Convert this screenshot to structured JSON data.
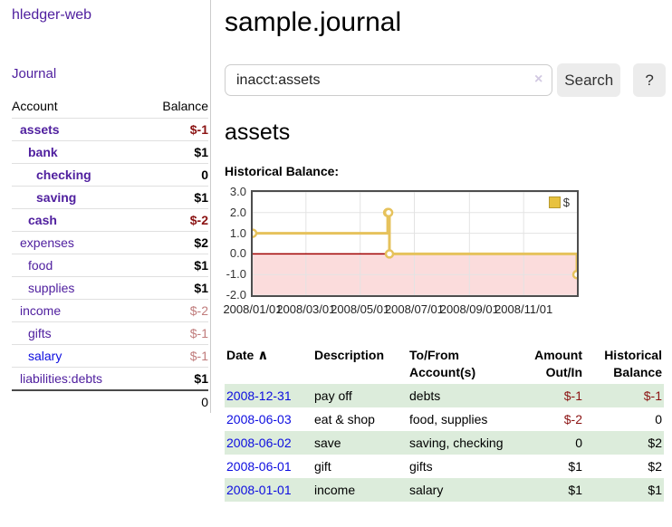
{
  "app_title": "hledger-web",
  "sidebar": {
    "journal_link": "Journal",
    "table": {
      "account_header": "Account",
      "balance_header": "Balance",
      "rows": [
        {
          "name": "assets",
          "level": 1,
          "bold": true,
          "name_style": "purple",
          "balance": "$-1",
          "balance_style": "negative-strong"
        },
        {
          "name": "bank",
          "level": 2,
          "bold": true,
          "name_style": "purple",
          "balance": "$1",
          "balance_style": "normal"
        },
        {
          "name": "checking",
          "level": 3,
          "bold": true,
          "name_style": "purple",
          "balance": "0",
          "balance_style": "normal"
        },
        {
          "name": "saving",
          "level": 3,
          "bold": true,
          "name_style": "purple",
          "balance": "$1",
          "balance_style": "normal"
        },
        {
          "name": "cash",
          "level": 2,
          "bold": true,
          "name_style": "purple",
          "balance": "$-2",
          "balance_style": "negative-strong"
        },
        {
          "name": "expenses",
          "level": 1,
          "bold": false,
          "name_style": "purple",
          "balance": "$2",
          "balance_style": "normal"
        },
        {
          "name": "food",
          "level": 2,
          "bold": false,
          "name_style": "purple",
          "balance": "$1",
          "balance_style": "normal"
        },
        {
          "name": "supplies",
          "level": 2,
          "bold": false,
          "name_style": "purple",
          "balance": "$1",
          "balance_style": "normal"
        },
        {
          "name": "income",
          "level": 1,
          "bold": false,
          "name_style": "purple",
          "balance": "$-2",
          "balance_style": "negative-faded"
        },
        {
          "name": "gifts",
          "level": 2,
          "bold": false,
          "name_style": "purple",
          "balance": "$-1",
          "balance_style": "negative-faded"
        },
        {
          "name": "salary",
          "level": 2,
          "bold": false,
          "name_style": "blue",
          "balance": "$-1",
          "balance_style": "negative-faded"
        },
        {
          "name": "liabilities:debts",
          "level": 1,
          "bold": false,
          "name_style": "purple",
          "balance": "$1",
          "balance_style": "normal"
        }
      ],
      "total": "0"
    }
  },
  "main": {
    "title": "sample.journal",
    "search": {
      "value": "inacct:assets",
      "clear_icon": "×",
      "search_button": "Search",
      "help_button": "?"
    },
    "account_heading": "assets",
    "chart_title": "Historical Balance:",
    "register": {
      "sort_indicator": "∧",
      "headers": [
        {
          "label": "Date",
          "align": "left",
          "sorted": true
        },
        {
          "label": "Description",
          "align": "left"
        },
        {
          "label": "To/From Account(s)",
          "align": "left"
        },
        {
          "label": "Amount Out/In",
          "align": "right"
        },
        {
          "label": "Historical Balance",
          "align": "right"
        }
      ],
      "rows": [
        {
          "date": "2008-12-31",
          "description": "pay off",
          "accounts": "debts",
          "amount": "$-1",
          "amount_negative": true,
          "balance": "$-1",
          "balance_negative": true
        },
        {
          "date": "2008-06-03",
          "description": "eat & shop",
          "accounts": "food, supplies",
          "amount": "$-2",
          "amount_negative": true,
          "balance": "0",
          "balance_negative": false
        },
        {
          "date": "2008-06-02",
          "description": "save",
          "accounts": "saving, checking",
          "amount": "0",
          "amount_negative": false,
          "balance": "$2",
          "balance_negative": false
        },
        {
          "date": "2008-06-01",
          "description": "gift",
          "accounts": "gifts",
          "amount": "$1",
          "amount_negative": false,
          "balance": "$2",
          "balance_negative": false
        },
        {
          "date": "2008-01-01",
          "description": "income",
          "accounts": "salary",
          "amount": "$1",
          "amount_negative": false,
          "balance": "$1",
          "balance_negative": false
        }
      ]
    }
  },
  "chart_data": {
    "type": "line",
    "title": "Historical Balance:",
    "step": true,
    "x_domain": [
      "2008-01-01",
      "2008-12-31"
    ],
    "ylim": [
      -2,
      3
    ],
    "y_ticks": [
      3.0,
      2.0,
      1.0,
      0.0,
      -1.0,
      -2.0
    ],
    "x_ticks": [
      "2008/01/01",
      "2008/03/01",
      "2008/05/01",
      "2008/07/01",
      "2008/09/01",
      "2008/11/01"
    ],
    "series": [
      {
        "name": "$",
        "color": "#e6c25c",
        "points": [
          [
            "2008-01-01",
            1
          ],
          [
            "2008-06-01",
            2
          ],
          [
            "2008-06-02",
            2
          ],
          [
            "2008-06-03",
            0
          ],
          [
            "2008-12-31",
            -1
          ]
        ]
      }
    ],
    "legend": {
      "position": "top-right",
      "label": "$"
    },
    "negative_region_color": "#fbdcdc",
    "zero_line_color": "#a00000",
    "grid": true
  },
  "colors": {
    "link_purple": "#50209f",
    "link_blue": "#0d0de0",
    "negative_strong": "#8b1313",
    "negative_faded": "#c07c7c",
    "row_stripe_green": "#dcecdb",
    "chart_line": "#e6c25c",
    "chart_fill_negative": "#fbdcdc",
    "chart_zero_line": "#a00000",
    "button_bg": "#ececec"
  }
}
